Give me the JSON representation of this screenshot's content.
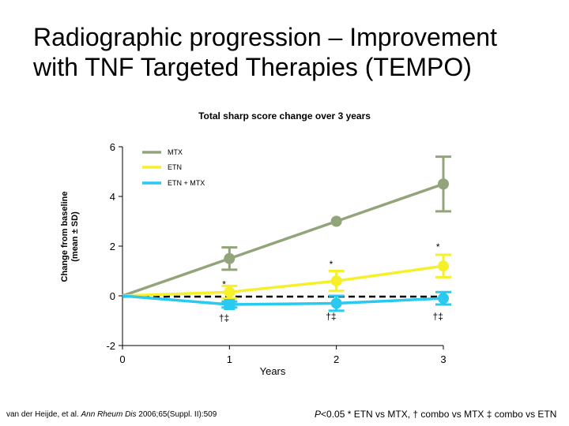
{
  "title": {
    "line1": "Radiographic progression – Improvement",
    "line2": "with TNF Targeted Therapies (TEMPO)"
  },
  "colors": {
    "MTX": "#92a57a",
    "ETN": "#f5f02a",
    "ETN_MTX": "#29c9f0",
    "axis": "#000000"
  },
  "chart_data": {
    "type": "line",
    "title": "Total sharp score change over 3 years",
    "xlabel": "Years",
    "ylabel_line1": "Change from baseline",
    "ylabel_line2": "(mean ± SD)",
    "x": [
      0,
      1,
      2,
      3
    ],
    "xlim": [
      0,
      3
    ],
    "ylim": [
      -2,
      6
    ],
    "x_ticks": [
      "0",
      "1",
      "2",
      "3"
    ],
    "y_ticks": [
      "-2",
      "0",
      "2",
      "4",
      "6"
    ],
    "series": [
      {
        "name": "MTX",
        "values": [
          0,
          1.5,
          3.0,
          4.5
        ],
        "errors": [
          null,
          0.45,
          null,
          1.1
        ]
      },
      {
        "name": "ETN",
        "values": [
          0,
          0.15,
          0.6,
          1.2
        ],
        "errors": [
          null,
          0.25,
          0.4,
          0.45
        ]
      },
      {
        "name": "ETN + MTX",
        "values": [
          0,
          -0.35,
          -0.3,
          -0.1
        ],
        "errors": [
          null,
          0.12,
          0.3,
          0.25
        ]
      }
    ],
    "baseline_dashed": 0,
    "annotations": [
      {
        "text": "*",
        "x": 0.95,
        "y": 0.5
      },
      {
        "text": "*",
        "x": 1.95,
        "y": 1.3
      },
      {
        "text": "*",
        "x": 2.95,
        "y": 2.0
      },
      {
        "text": "†‡",
        "x": 0.95,
        "y": -0.85
      },
      {
        "text": "†‡",
        "x": 1.95,
        "y": -0.8
      },
      {
        "text": "†‡",
        "x": 2.95,
        "y": -0.8
      }
    ]
  },
  "footer": {
    "reference_prefix": "van der Heijde, et al. ",
    "reference_journal": "Ann Rheum Dis",
    "reference_suffix": " 2006;65(Suppl. II):509",
    "note_p": "P",
    "note_text": "<0.05 * ETN vs MTX, † combo vs MTX ‡ combo vs ETN"
  }
}
